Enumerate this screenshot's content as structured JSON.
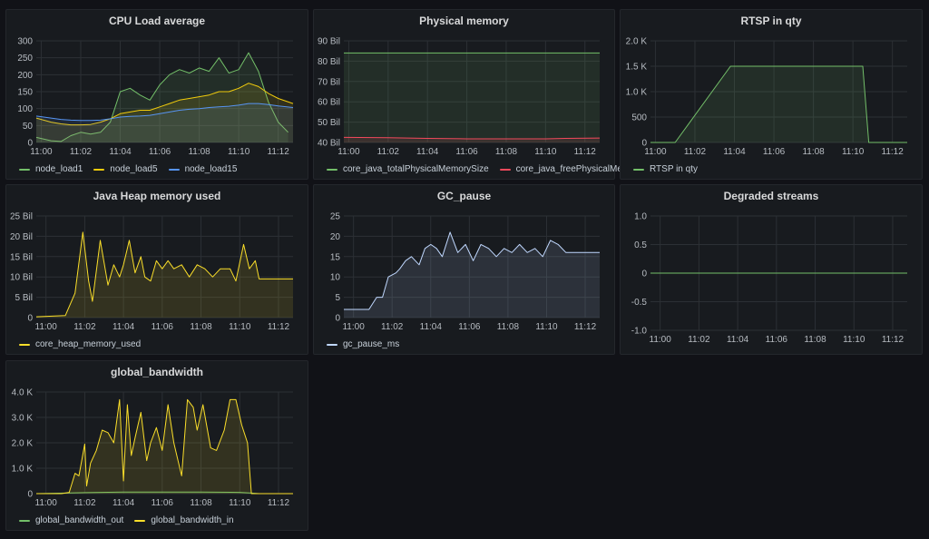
{
  "panels": [
    {
      "id": "cpu",
      "title": "CPU Load average",
      "legend": [
        {
          "label": "node_load1",
          "color": "#73bf69"
        },
        {
          "label": "node_load5",
          "color": "#f2cc0c"
        },
        {
          "label": "node_load15",
          "color": "#5794f2"
        }
      ]
    },
    {
      "id": "mem",
      "title": "Physical memory",
      "legend": [
        {
          "label": "core_java_totalPhysicalMemorySize",
          "color": "#73bf69"
        },
        {
          "label": "core_java_freePhysicalMemorySize",
          "color": "#f2495c"
        }
      ]
    },
    {
      "id": "rtsp",
      "title": "RTSP in qty",
      "legend": [
        {
          "label": "RTSP in qty",
          "color": "#73bf69"
        }
      ]
    },
    {
      "id": "heap",
      "title": "Java Heap memory used",
      "legend": [
        {
          "label": "core_heap_memory_used",
          "color": "#fade2a"
        }
      ]
    },
    {
      "id": "gc",
      "title": "GC_pause",
      "legend": [
        {
          "label": "gc_pause_ms",
          "color": "#c0d8ff"
        }
      ]
    },
    {
      "id": "degraded",
      "title": "Degraded streams",
      "legend": []
    },
    {
      "id": "bw",
      "title": "global_bandwidth",
      "legend": [
        {
          "label": "global_bandwidth_out",
          "color": "#73bf69"
        },
        {
          "label": "global_bandwidth_in",
          "color": "#fade2a"
        }
      ]
    }
  ],
  "chart_data": [
    {
      "id": "cpu",
      "type": "area",
      "title": "CPU Load average",
      "x_ticks": [
        "11:00",
        "11:02",
        "11:04",
        "11:06",
        "11:08",
        "11:10",
        "11:12"
      ],
      "x_range": [
        -0.25,
        12.75
      ],
      "y_ticks": [
        "0",
        "50",
        "100",
        "150",
        "200",
        "250",
        "300"
      ],
      "ylim": [
        0,
        300
      ],
      "legend": "bottom",
      "series": [
        {
          "name": "node_load1",
          "color": "#73bf69",
          "x": [
            -0.25,
            0.5,
            1.0,
            1.5,
            2.0,
            2.5,
            3.0,
            3.5,
            4.0,
            4.5,
            5.0,
            5.5,
            6.0,
            6.5,
            7.0,
            7.5,
            8.0,
            8.5,
            9.0,
            9.5,
            10.0,
            10.5,
            11.0,
            11.5,
            12.0,
            12.5
          ],
          "values": [
            15,
            5,
            3,
            20,
            30,
            25,
            30,
            60,
            150,
            160,
            140,
            125,
            170,
            200,
            215,
            205,
            220,
            210,
            250,
            205,
            215,
            265,
            210,
            120,
            60,
            30
          ]
        },
        {
          "name": "node_load5",
          "color": "#f2cc0c",
          "x": [
            -0.25,
            0.5,
            1.0,
            1.5,
            2.0,
            2.5,
            3.0,
            3.5,
            4.0,
            4.5,
            5.0,
            5.5,
            6.0,
            6.5,
            7.0,
            7.5,
            8.0,
            8.5,
            9.0,
            9.5,
            10.0,
            10.5,
            11.0,
            11.5,
            12.0,
            12.75
          ],
          "values": [
            72,
            60,
            55,
            52,
            52,
            53,
            60,
            70,
            85,
            90,
            95,
            95,
            105,
            115,
            125,
            130,
            135,
            140,
            150,
            150,
            160,
            175,
            165,
            145,
            130,
            115
          ]
        },
        {
          "name": "node_load15",
          "color": "#5794f2",
          "x": [
            -0.25,
            0.5,
            1.0,
            1.5,
            2.0,
            2.5,
            3.0,
            3.5,
            4.0,
            4.5,
            5.0,
            5.5,
            6.0,
            6.5,
            7.0,
            7.5,
            8.0,
            8.5,
            9.0,
            9.5,
            10.0,
            10.5,
            11.0,
            11.5,
            12.0,
            12.75
          ],
          "values": [
            78,
            72,
            68,
            66,
            65,
            65,
            66,
            70,
            75,
            77,
            78,
            80,
            85,
            90,
            95,
            98,
            100,
            103,
            105,
            107,
            110,
            115,
            115,
            112,
            108,
            103
          ]
        }
      ]
    },
    {
      "id": "mem",
      "type": "area",
      "title": "Physical memory",
      "x_ticks": [
        "11:00",
        "11:02",
        "11:04",
        "11:06",
        "11:08",
        "11:10",
        "11:12"
      ],
      "x_range": [
        -0.25,
        12.75
      ],
      "y_ticks": [
        "40 Bil",
        "50 Bil",
        "60 Bil",
        "70 Bil",
        "80 Bil",
        "90 Bil"
      ],
      "ylim": [
        40,
        90
      ],
      "legend": "bottom",
      "series": [
        {
          "name": "core_java_totalPhysicalMemorySize",
          "color": "#73bf69",
          "x": [
            -0.25,
            12.75
          ],
          "values": [
            84,
            84
          ]
        },
        {
          "name": "core_java_freePhysicalMemorySize",
          "color": "#f2495c",
          "x": [
            -0.25,
            2.0,
            4.0,
            6.0,
            8.0,
            10.0,
            11.0,
            12.75
          ],
          "values": [
            42.5,
            42.3,
            42.0,
            41.8,
            41.8,
            41.8,
            42.0,
            42.2
          ]
        }
      ]
    },
    {
      "id": "rtsp",
      "type": "area",
      "title": "RTSP in qty",
      "x_ticks": [
        "11:00",
        "11:02",
        "11:04",
        "11:06",
        "11:08",
        "11:10",
        "11:12"
      ],
      "x_range": [
        -0.25,
        12.75
      ],
      "y_ticks": [
        "0",
        "500",
        "1.0 K",
        "1.5 K",
        "2.0 K"
      ],
      "ylim": [
        0,
        2000
      ],
      "legend": "bottom",
      "series": [
        {
          "name": "RTSP in qty",
          "color": "#73bf69",
          "x": [
            -0.25,
            1.0,
            3.8,
            10.5,
            10.8,
            12.75
          ],
          "values": [
            0,
            0,
            1500,
            1500,
            0,
            0
          ]
        }
      ]
    },
    {
      "id": "heap",
      "type": "area",
      "title": "Java Heap memory used",
      "x_ticks": [
        "11:00",
        "11:02",
        "11:04",
        "11:06",
        "11:08",
        "11:10",
        "11:12"
      ],
      "x_range": [
        -0.5,
        12.75
      ],
      "y_ticks": [
        "0",
        "5 Bil",
        "10 Bil",
        "15 Bil",
        "20 Bil",
        "25 Bil"
      ],
      "ylim": [
        0,
        25
      ],
      "legend": "bottom",
      "series": [
        {
          "name": "core_heap_memory_used",
          "color": "#fade2a",
          "x": [
            -0.5,
            1.0,
            1.5,
            1.9,
            2.2,
            2.4,
            2.8,
            3.2,
            3.5,
            3.8,
            4.0,
            4.3,
            4.6,
            4.9,
            5.1,
            5.4,
            5.7,
            6.0,
            6.3,
            6.6,
            7.0,
            7.4,
            7.8,
            8.2,
            8.6,
            9.0,
            9.5,
            9.8,
            10.2,
            10.5,
            10.8,
            11.0,
            12.75
          ],
          "values": [
            0.2,
            0.5,
            6,
            21,
            9,
            4,
            19,
            8,
            13,
            10,
            13,
            19,
            11,
            15,
            10,
            9,
            14,
            12,
            14,
            12,
            13,
            10,
            13,
            12,
            10,
            12,
            12,
            9,
            18,
            12,
            14,
            9.5,
            9.5
          ]
        }
      ]
    },
    {
      "id": "gc",
      "type": "area",
      "title": "GC_pause",
      "x_ticks": [
        "11:00",
        "11:02",
        "11:04",
        "11:06",
        "11:08",
        "11:10",
        "11:12"
      ],
      "x_range": [
        -0.5,
        12.75
      ],
      "y_ticks": [
        "0",
        "5",
        "10",
        "15",
        "20",
        "25"
      ],
      "ylim": [
        0,
        25
      ],
      "legend": "bottom",
      "series": [
        {
          "name": "gc_pause_ms",
          "color": "#c0d8ff",
          "x": [
            -0.5,
            0.8,
            1.2,
            1.5,
            1.8,
            2.2,
            2.4,
            2.7,
            3.0,
            3.4,
            3.7,
            4.0,
            4.3,
            4.6,
            5.0,
            5.4,
            5.8,
            6.2,
            6.6,
            7.0,
            7.4,
            7.8,
            8.2,
            8.6,
            9.0,
            9.4,
            9.8,
            10.2,
            10.6,
            11.0,
            12.75
          ],
          "values": [
            2,
            2,
            5,
            5,
            10,
            11,
            12,
            14,
            15,
            13,
            17,
            18,
            17,
            15,
            21,
            16,
            18,
            14,
            18,
            17,
            15,
            17,
            16,
            18,
            16,
            17,
            15,
            19,
            18,
            16,
            16
          ]
        }
      ]
    },
    {
      "id": "degraded",
      "type": "line",
      "title": "Degraded streams",
      "x_ticks": [
        "11:00",
        "11:02",
        "11:04",
        "11:06",
        "11:08",
        "11:10",
        "11:12"
      ],
      "x_range": [
        -0.5,
        12.75
      ],
      "y_ticks": [
        "-1.0",
        "-0.5",
        "0",
        "0.5",
        "1.0"
      ],
      "ylim": [
        -1,
        1
      ],
      "series": [
        {
          "color": "#73bf69",
          "x": [
            -0.5,
            12.75
          ],
          "values": [
            0,
            0
          ]
        }
      ]
    },
    {
      "id": "bw",
      "type": "area",
      "title": "global_bandwidth",
      "x_ticks": [
        "11:00",
        "11:02",
        "11:04",
        "11:06",
        "11:08",
        "11:10",
        "11:12"
      ],
      "x_range": [
        -0.5,
        12.75
      ],
      "y_ticks": [
        "0",
        "1.0 K",
        "2.0 K",
        "3.0 K",
        "4.0 K"
      ],
      "ylim": [
        0,
        4000
      ],
      "legend": "bottom",
      "series": [
        {
          "name": "global_bandwidth_out",
          "color": "#73bf69",
          "x": [
            -0.5,
            1.0,
            2.0,
            4.0,
            6.0,
            8.0,
            10.0,
            10.6,
            11.0,
            12.75
          ],
          "values": [
            0,
            20,
            40,
            60,
            60,
            60,
            50,
            20,
            0,
            0
          ]
        },
        {
          "name": "global_bandwidth_in",
          "color": "#fade2a",
          "x": [
            -0.5,
            0.8,
            1.2,
            1.5,
            1.7,
            2.0,
            2.1,
            2.3,
            2.6,
            2.9,
            3.2,
            3.5,
            3.8,
            4.0,
            4.2,
            4.4,
            4.6,
            4.9,
            5.2,
            5.4,
            5.7,
            6.0,
            6.3,
            6.6,
            7.0,
            7.3,
            7.6,
            7.8,
            8.1,
            8.5,
            8.8,
            9.2,
            9.5,
            9.8,
            10.1,
            10.4,
            10.6,
            11.0,
            12.75
          ],
          "values": [
            0,
            0,
            50,
            800,
            700,
            1950,
            300,
            1200,
            1700,
            2500,
            2400,
            2000,
            3700,
            500,
            3500,
            1500,
            2200,
            3200,
            1300,
            2000,
            2600,
            1700,
            3500,
            2000,
            700,
            3700,
            3400,
            2500,
            3500,
            1800,
            1700,
            2500,
            3700,
            3700,
            2700,
            2000,
            0,
            0,
            0
          ]
        }
      ]
    }
  ]
}
